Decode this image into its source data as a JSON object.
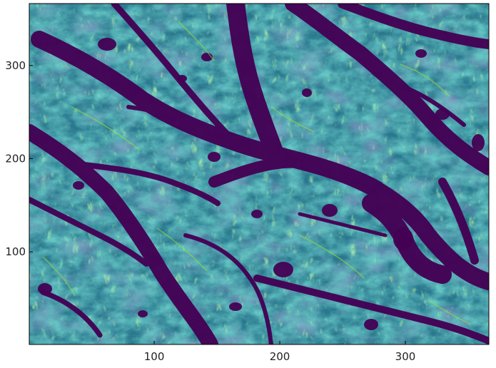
{
  "chart_data": {
    "type": "heatmap",
    "title": "",
    "xlabel": "",
    "ylabel": "",
    "xlim": [
      0.5,
      366.5
    ],
    "ylim": [
      0.5,
      366.5
    ],
    "x_ticks": [
      100,
      200,
      300
    ],
    "y_ticks": [
      100,
      200,
      300
    ],
    "x_tick_labels": [
      "100",
      "200",
      "300"
    ],
    "y_tick_labels": [
      "100",
      "200",
      "300"
    ],
    "colormap": "viridis",
    "colors": {
      "low": "#440154",
      "mid_low": "#3b528b",
      "mid": "#21908d",
      "mid_high": "#5dc863",
      "high": "#fde725"
    },
    "grid": false,
    "legend": "none",
    "description_of_values": "grayscale-like intensity field of fibrous tissue texture with dark (low) channels"
  }
}
